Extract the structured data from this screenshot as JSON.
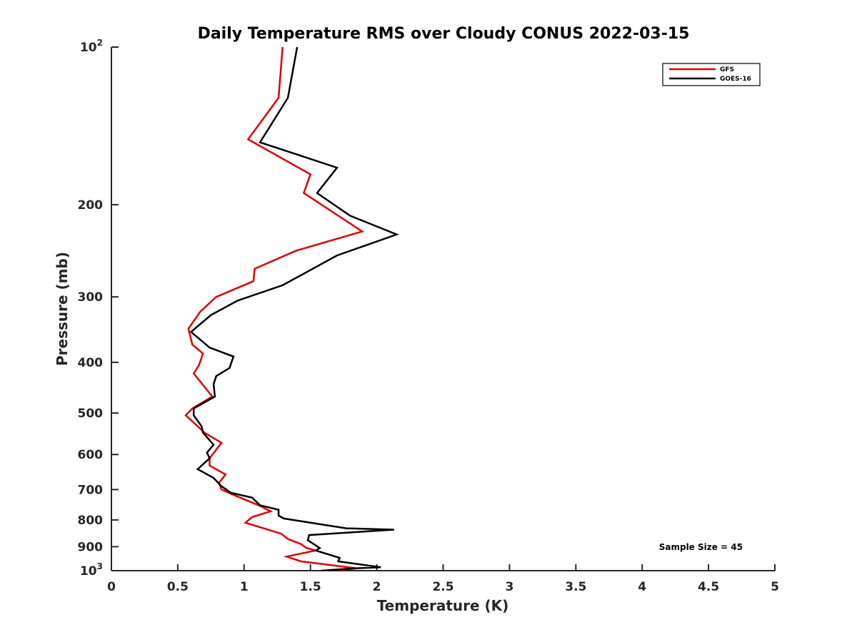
{
  "chart_data": {
    "type": "line",
    "title": "Daily Temperature RMS over Cloudy CONUS 2022-03-15",
    "xlabel": "Temperature (K)",
    "ylabel": "Pressure (mb)",
    "xlim": [
      0,
      5
    ],
    "ylim": [
      100,
      1000
    ],
    "y_scale": "log",
    "y_reversed": true,
    "grid": false,
    "legend_position": "top-right",
    "x_ticks": [
      {
        "value": 0,
        "label": "0"
      },
      {
        "value": 0.5,
        "label": "0.5"
      },
      {
        "value": 1,
        "label": "1"
      },
      {
        "value": 1.5,
        "label": "1.5"
      },
      {
        "value": 2,
        "label": "2"
      },
      {
        "value": 2.5,
        "label": "2.5"
      },
      {
        "value": 3,
        "label": "3"
      },
      {
        "value": 3.5,
        "label": "3.5"
      },
      {
        "value": 4,
        "label": "4"
      },
      {
        "value": 4.5,
        "label": "4.5"
      },
      {
        "value": 5,
        "label": "5"
      }
    ],
    "y_ticks": [
      {
        "value": 100,
        "base": "10",
        "exp": "2"
      },
      {
        "value": 200,
        "label": "200"
      },
      {
        "value": 300,
        "label": "300"
      },
      {
        "value": 400,
        "label": "400"
      },
      {
        "value": 500,
        "label": "500"
      },
      {
        "value": 600,
        "label": "600"
      },
      {
        "value": 700,
        "label": "700"
      },
      {
        "value": 800,
        "label": "800"
      },
      {
        "value": 900,
        "label": "900"
      },
      {
        "value": 1000,
        "base": "10",
        "exp": "3"
      }
    ],
    "series": [
      {
        "name": "GFS",
        "color": "#e00000",
        "points": [
          [
            1.29,
            100
          ],
          [
            1.26,
            125
          ],
          [
            1.03,
            150
          ],
          [
            1.5,
            175
          ],
          [
            1.45,
            190
          ],
          [
            1.89,
            225
          ],
          [
            1.39,
            245
          ],
          [
            1.08,
            265
          ],
          [
            1.07,
            280
          ],
          [
            0.79,
            300
          ],
          [
            0.67,
            320
          ],
          [
            0.58,
            345
          ],
          [
            0.61,
            370
          ],
          [
            0.69,
            385
          ],
          [
            0.66,
            405
          ],
          [
            0.62,
            420
          ],
          [
            0.76,
            465
          ],
          [
            0.61,
            490
          ],
          [
            0.56,
            505
          ],
          [
            0.65,
            530
          ],
          [
            0.7,
            545
          ],
          [
            0.83,
            570
          ],
          [
            0.74,
            610
          ],
          [
            0.74,
            630
          ],
          [
            0.86,
            655
          ],
          [
            0.81,
            680
          ],
          [
            0.83,
            700
          ],
          [
            0.94,
            720
          ],
          [
            1.11,
            750
          ],
          [
            1.2,
            770
          ],
          [
            1.06,
            790
          ],
          [
            1.01,
            810
          ],
          [
            1.28,
            850
          ],
          [
            1.33,
            870
          ],
          [
            1.43,
            890
          ],
          [
            1.47,
            905
          ],
          [
            1.54,
            915
          ],
          [
            1.32,
            940
          ],
          [
            1.43,
            960
          ],
          [
            1.85,
            990
          ],
          [
            1.68,
            1000
          ]
        ]
      },
      {
        "name": "GOES-16",
        "color": "#000000",
        "points": [
          [
            1.4,
            100
          ],
          [
            1.33,
            125
          ],
          [
            1.12,
            152
          ],
          [
            1.7,
            170
          ],
          [
            1.55,
            190
          ],
          [
            1.8,
            210
          ],
          [
            2.15,
            228
          ],
          [
            1.7,
            250
          ],
          [
            1.46,
            270
          ],
          [
            1.29,
            285
          ],
          [
            0.95,
            305
          ],
          [
            0.75,
            325
          ],
          [
            0.6,
            350
          ],
          [
            0.74,
            375
          ],
          [
            0.92,
            390
          ],
          [
            0.89,
            410
          ],
          [
            0.79,
            425
          ],
          [
            0.77,
            440
          ],
          [
            0.78,
            465
          ],
          [
            0.62,
            490
          ],
          [
            0.62,
            505
          ],
          [
            0.68,
            530
          ],
          [
            0.69,
            545
          ],
          [
            0.77,
            575
          ],
          [
            0.72,
            595
          ],
          [
            0.74,
            610
          ],
          [
            0.65,
            640
          ],
          [
            0.77,
            665
          ],
          [
            0.83,
            690
          ],
          [
            0.9,
            710
          ],
          [
            1.06,
            725
          ],
          [
            1.12,
            750
          ],
          [
            1.26,
            765
          ],
          [
            1.26,
            785
          ],
          [
            1.3,
            795
          ],
          [
            1.77,
            830
          ],
          [
            2.13,
            835
          ],
          [
            1.49,
            855
          ],
          [
            1.48,
            875
          ],
          [
            1.57,
            905
          ],
          [
            1.54,
            915
          ],
          [
            1.72,
            945
          ],
          [
            1.71,
            960
          ],
          [
            2.03,
            985
          ],
          [
            1.83,
            990
          ],
          [
            1.58,
            1000
          ]
        ]
      }
    ],
    "annotations": [
      "Sample Size = 45"
    ]
  }
}
